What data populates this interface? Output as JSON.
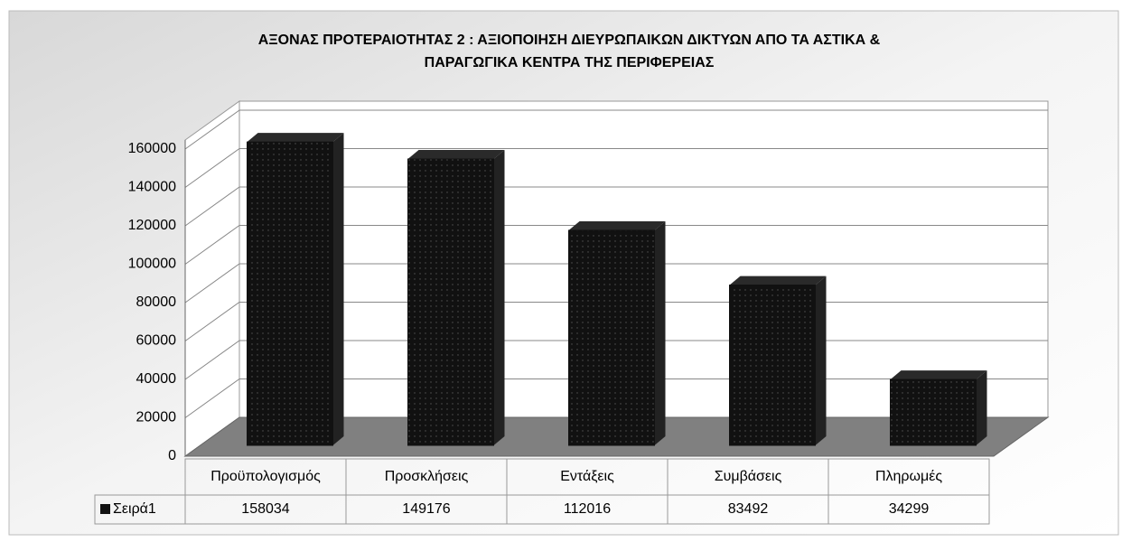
{
  "chart_data": {
    "type": "bar3d",
    "title": [
      "ΑΞΟΝΑΣ ΠΡΟΤΕΡΑΙΟΤΗΤΑΣ 2 : ΑΞΙΟΠΟΙΗΣΗ ΔΙΕΥΡΩΠΑΙΚΩΝ ΔΙΚΤΥΩΝ ΑΠΟ ΤΑ ΑΣΤΙΚΑ &",
      "ΠΑΡΑΓΩΓΙΚΑ ΚΕΝΤΡΑ ΤΗΣ ΠΕΡΙΦΕΡΕΙΑΣ"
    ],
    "categories": [
      "Προϋπολογισμός",
      "Προσκλήσεις",
      "Εντάξεις",
      "Συμβάσεις",
      "Πληρωμές"
    ],
    "series": [
      {
        "name": "Σειρά1",
        "color": "#111111",
        "values": [
          158034,
          149176,
          112016,
          83492,
          34299
        ]
      }
    ],
    "ylim": [
      0,
      160000
    ],
    "yticks": [
      0,
      20000,
      40000,
      60000,
      80000,
      100000,
      120000,
      140000,
      160000
    ],
    "grid": true
  }
}
